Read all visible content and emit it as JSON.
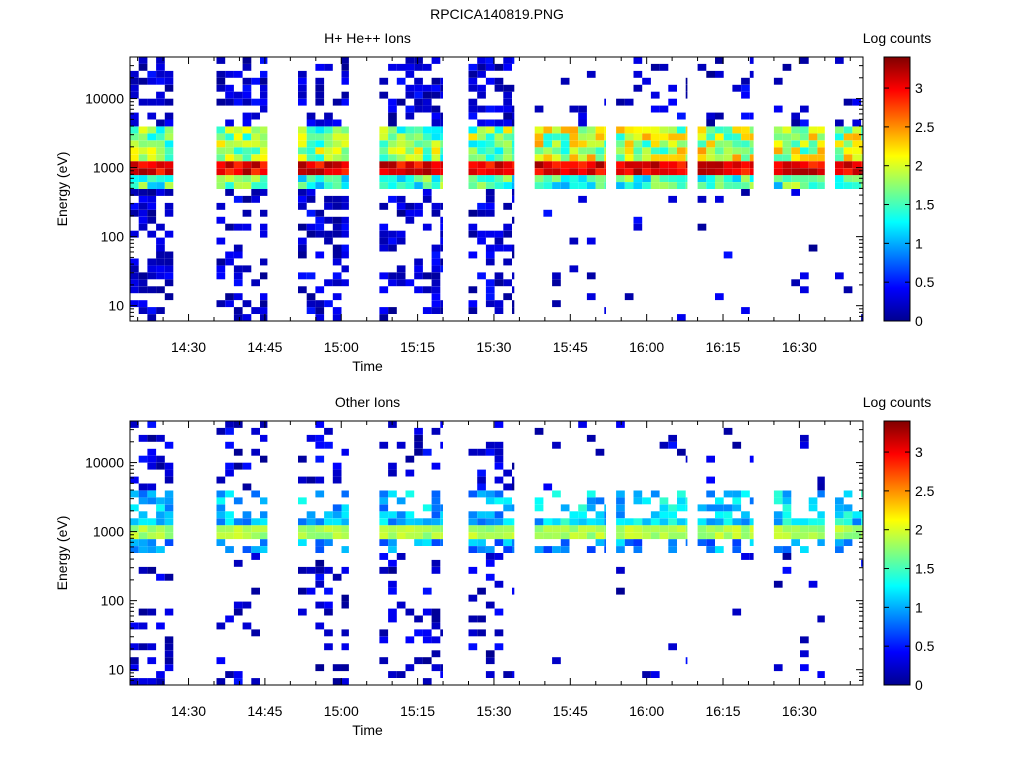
{
  "figure_title": "RPCICA140819.PNG",
  "chart_data": [
    {
      "type": "heatmap",
      "title": "H+ He++ Ions",
      "xlabel": "Time",
      "ylabel": "Energy (eV)",
      "x_ticks": [
        "14:30",
        "14:45",
        "15:00",
        "15:15",
        "15:30",
        "15:45",
        "16:00",
        "16:15",
        "16:30"
      ],
      "y_ticks": [
        "10",
        "100",
        "1000",
        "10000"
      ],
      "ylog": true,
      "colorbar": {
        "label": "Log counts",
        "ticks": [
          "0",
          "0.5",
          "1",
          "1.5",
          "2",
          "2.5",
          "3"
        ],
        "range": [
          0,
          3.4
        ],
        "colormap": "jet"
      },
      "x_range_minutes_after_1400": [
        18.5,
        162.5
      ],
      "occupied_time_ranges_minutes_after_1400": [
        [
          18.5,
          27
        ],
        [
          35.5,
          45.5
        ],
        [
          51.5,
          61.5
        ],
        [
          67.5,
          80
        ],
        [
          85,
          94
        ],
        [
          98,
          112
        ],
        [
          114,
          128
        ],
        [
          130,
          141
        ],
        [
          145,
          155
        ],
        [
          157,
          162.5
        ]
      ],
      "peak_energy_ev": 1000,
      "peak_log_counts": 3.3
    },
    {
      "type": "heatmap",
      "title": "Other Ions",
      "xlabel": "Time",
      "ylabel": "Energy (eV)",
      "x_ticks": [
        "14:30",
        "14:45",
        "15:00",
        "15:15",
        "15:30",
        "15:45",
        "16:00",
        "16:15",
        "16:30"
      ],
      "y_ticks": [
        "10",
        "100",
        "1000",
        "10000"
      ],
      "ylog": true,
      "colorbar": {
        "label": "Log counts",
        "ticks": [
          "0",
          "0.5",
          "1",
          "1.5",
          "2",
          "2.5",
          "3"
        ],
        "range": [
          0,
          3.4
        ],
        "colormap": "jet"
      },
      "x_range_minutes_after_1400": [
        18.5,
        162.5
      ],
      "occupied_time_ranges_minutes_after_1400": [
        [
          18.5,
          27
        ],
        [
          35.5,
          45.5
        ],
        [
          51.5,
          61.5
        ],
        [
          67.5,
          80
        ],
        [
          85,
          94
        ],
        [
          98,
          112
        ],
        [
          114,
          128
        ],
        [
          130,
          141
        ],
        [
          145,
          155
        ],
        [
          157,
          162.5
        ]
      ],
      "peak_energy_ev": 1000,
      "peak_log_counts": 2.0
    }
  ]
}
